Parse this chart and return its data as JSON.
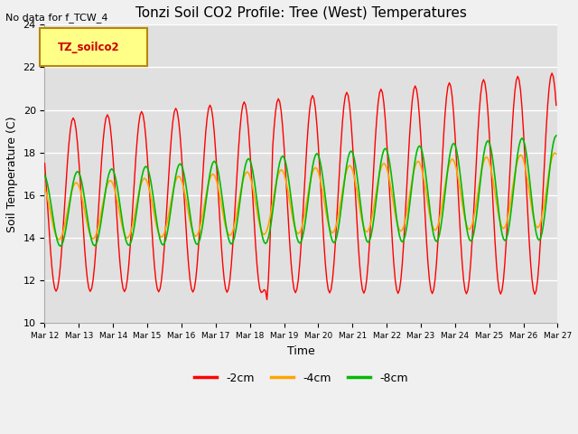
{
  "title": "Tonzi Soil CO2 Profile: Tree (West) Temperatures",
  "no_data_text": "No data for f_TCW_4",
  "legend_box_text": "TZ_soilco2",
  "xlabel": "Time",
  "ylabel": "Soil Temperature (C)",
  "ylim": [
    10,
    24
  ],
  "colors": {
    "-2cm": "#ff0000",
    "-4cm": "#ffa500",
    "-8cm": "#00bb00"
  },
  "legend_labels": [
    "-2cm",
    "-4cm",
    "-8cm"
  ],
  "tick_labels": [
    "Mar 12",
    "Mar 13",
    "Mar 14",
    "Mar 15",
    "Mar 16",
    "Mar 17",
    "Mar 18",
    "Mar 19",
    "Mar 20",
    "Mar 21",
    "Mar 22",
    "Mar 23",
    "Mar 24",
    "Mar 25",
    "Mar 26",
    "Mar 27"
  ],
  "fig_bg_color": "#f0f0f0",
  "plot_bg_color": "#e0e0e0",
  "grid_color": "#ffffff"
}
